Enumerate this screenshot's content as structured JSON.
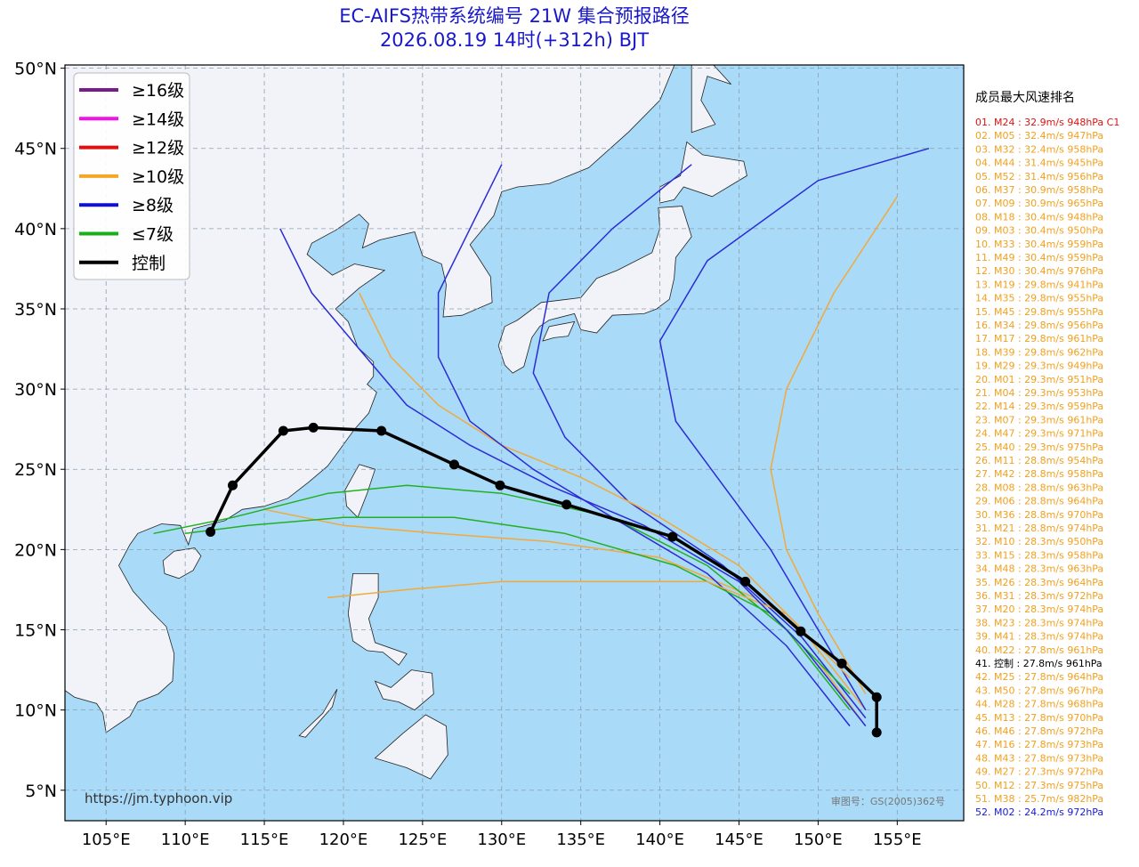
{
  "header": {
    "title": "EC-AIFS热带系统编号 21W 集合预报路径",
    "subtitle": "2026.08.19 14时(+312h) BJT"
  },
  "map": {
    "lonlim": [
      102.4,
      159.2
    ],
    "latlim": [
      3.1,
      50.2
    ],
    "grid": true,
    "lonticks": [
      {
        "value": 105,
        "label": "105°E"
      },
      {
        "value": 110,
        "label": "110°E"
      },
      {
        "value": 115,
        "label": "115°E"
      },
      {
        "value": 120,
        "label": "120°E"
      },
      {
        "value": 125,
        "label": "125°E"
      },
      {
        "value": 130,
        "label": "130°E"
      },
      {
        "value": 135,
        "label": "135°E"
      },
      {
        "value": 140,
        "label": "140°E"
      },
      {
        "value": 145,
        "label": "145°E"
      },
      {
        "value": 150,
        "label": "150°E"
      },
      {
        "value": 155,
        "label": "155°E"
      }
    ],
    "latticks": [
      {
        "value": 5,
        "label": "5°N"
      },
      {
        "value": 10,
        "label": "10°N"
      },
      {
        "value": 15,
        "label": "15°N"
      },
      {
        "value": 20,
        "label": "20°N"
      },
      {
        "value": 25,
        "label": "25°N"
      },
      {
        "value": 30,
        "label": "30°N"
      },
      {
        "value": 35,
        "label": "35°N"
      },
      {
        "value": 40,
        "label": "40°N"
      },
      {
        "value": 45,
        "label": "45°N"
      },
      {
        "value": 50,
        "label": "50°N"
      }
    ]
  },
  "legend": {
    "items": [
      {
        "label": "≥16级",
        "color": "#7a1a8c"
      },
      {
        "label": "≥14级",
        "color": "#f012e8"
      },
      {
        "label": "≥12级",
        "color": "#e01010"
      },
      {
        "label": "≥10级",
        "color": "#f5a623"
      },
      {
        "label": "≥8级",
        "color": "#1010d0"
      },
      {
        "label": "≤7级",
        "color": "#18b018"
      },
      {
        "label": "控制",
        "color": "#000000"
      }
    ]
  },
  "tracks": [
    {
      "color": "#f2a93b",
      "lon": [
        153,
        150,
        146,
        140,
        133,
        126,
        120,
        115
      ],
      "lat": [
        9,
        13,
        17,
        19.5,
        20.5,
        21,
        21.5,
        22.5
      ]
    },
    {
      "color": "#2b2bd6",
      "lon": [
        153,
        149,
        144,
        138,
        134,
        132,
        133,
        137,
        142
      ],
      "lat": [
        9.5,
        14.5,
        19,
        23,
        27,
        31,
        36,
        40,
        44
      ]
    },
    {
      "color": "#22b022",
      "lon": [
        152,
        148,
        143,
        137,
        130,
        124,
        119,
        113,
        108
      ],
      "lat": [
        10,
        15,
        19,
        22,
        23.5,
        24,
        23.5,
        22,
        21
      ]
    },
    {
      "color": "#f2a93b",
      "lon": [
        153,
        149,
        145,
        140,
        135,
        130,
        126,
        123,
        121
      ],
      "lat": [
        10,
        15,
        19,
        22,
        24.5,
        26.5,
        29,
        32,
        36
      ]
    },
    {
      "color": "#2b2bd6",
      "lon": [
        152,
        148,
        143,
        137,
        132,
        128,
        126,
        126,
        128,
        130
      ],
      "lat": [
        9,
        14,
        18.5,
        22,
        25,
        28,
        32,
        36,
        40,
        44
      ]
    },
    {
      "color": "#f2a93b",
      "lon": [
        153,
        150,
        148,
        147,
        148,
        151,
        155
      ],
      "lat": [
        11,
        16,
        20,
        25,
        30,
        36,
        42
      ]
    },
    {
      "color": "#2b2bd6",
      "lon": [
        153,
        150,
        147,
        144,
        141,
        140,
        143,
        150,
        157
      ],
      "lat": [
        10,
        15,
        20,
        24,
        28,
        33,
        38,
        43,
        45
      ]
    },
    {
      "color": "#22b022",
      "lon": [
        152,
        147,
        141,
        134,
        127,
        120,
        114,
        110
      ],
      "lat": [
        11,
        16,
        19,
        21,
        22,
        22,
        21.5,
        21
      ]
    },
    {
      "color": "#f2a93b",
      "lon": [
        152,
        148,
        143,
        137,
        130,
        124,
        119
      ],
      "lat": [
        12,
        16,
        18,
        18,
        18,
        17.5,
        17
      ]
    },
    {
      "color": "#2b2bd6",
      "lon": [
        153,
        149,
        145,
        139,
        133,
        128,
        124,
        121,
        118,
        116
      ],
      "lat": [
        9,
        14,
        18,
        21.5,
        24,
        26.5,
        29,
        32.5,
        36,
        40
      ]
    }
  ],
  "control_track": {
    "color": "#000000",
    "lon": [
      153.7,
      153.7,
      151.5,
      148.9,
      145.4,
      140.8,
      134.1,
      129.9,
      127.0,
      122.4,
      118.1,
      116.2,
      113.0,
      111.6
    ],
    "lat": [
      8.6,
      10.8,
      12.9,
      14.9,
      18.0,
      20.8,
      22.8,
      24.0,
      25.3,
      27.4,
      27.6,
      27.4,
      24.0,
      21.1
    ]
  },
  "ranking": {
    "title": "成员最大风速排名",
    "entries": [
      {
        "text": "01. M24 : 32.9m/s 948hPa C1",
        "color": "#e01010"
      },
      {
        "text": "02. M05 : 32.4m/s 947hPa",
        "color": "#f0a020"
      },
      {
        "text": "03. M32 : 32.4m/s 958hPa",
        "color": "#f0a020"
      },
      {
        "text": "04. M44 : 31.4m/s 945hPa",
        "color": "#f0a020"
      },
      {
        "text": "05. M52 : 31.4m/s 956hPa",
        "color": "#f0a020"
      },
      {
        "text": "06. M37 : 30.9m/s 958hPa",
        "color": "#f0a020"
      },
      {
        "text": "07. M09 : 30.9m/s 965hPa",
        "color": "#f0a020"
      },
      {
        "text": "08. M18 : 30.4m/s 948hPa",
        "color": "#f0a020"
      },
      {
        "text": "09. M03 : 30.4m/s 950hPa",
        "color": "#f0a020"
      },
      {
        "text": "10. M33 : 30.4m/s 959hPa",
        "color": "#f0a020"
      },
      {
        "text": "11. M49 : 30.4m/s 959hPa",
        "color": "#f0a020"
      },
      {
        "text": "12. M30 : 30.4m/s 976hPa",
        "color": "#f0a020"
      },
      {
        "text": "13. M19 : 29.8m/s 941hPa",
        "color": "#f0a020"
      },
      {
        "text": "14. M35 : 29.8m/s 955hPa",
        "color": "#f0a020"
      },
      {
        "text": "15. M45 : 29.8m/s 955hPa",
        "color": "#f0a020"
      },
      {
        "text": "16. M34 : 29.8m/s 956hPa",
        "color": "#f0a020"
      },
      {
        "text": "17. M17 : 29.8m/s 961hPa",
        "color": "#f0a020"
      },
      {
        "text": "18. M39 : 29.8m/s 962hPa",
        "color": "#f0a020"
      },
      {
        "text": "19. M29 : 29.3m/s 949hPa",
        "color": "#f0a020"
      },
      {
        "text": "20. M01 : 29.3m/s 951hPa",
        "color": "#f0a020"
      },
      {
        "text": "21. M04 : 29.3m/s 953hPa",
        "color": "#f0a020"
      },
      {
        "text": "22. M14 : 29.3m/s 959hPa",
        "color": "#f0a020"
      },
      {
        "text": "23. M07 : 29.3m/s 961hPa",
        "color": "#f0a020"
      },
      {
        "text": "24. M47 : 29.3m/s 971hPa",
        "color": "#f0a020"
      },
      {
        "text": "25. M40 : 29.3m/s 975hPa",
        "color": "#f0a020"
      },
      {
        "text": "26. M11 : 28.8m/s 954hPa",
        "color": "#f0a020"
      },
      {
        "text": "27. M42 : 28.8m/s 958hPa",
        "color": "#f0a020"
      },
      {
        "text": "28. M08 : 28.8m/s 963hPa",
        "color": "#f0a020"
      },
      {
        "text": "29. M06 : 28.8m/s 964hPa",
        "color": "#f0a020"
      },
      {
        "text": "30. M36 : 28.8m/s 970hPa",
        "color": "#f0a020"
      },
      {
        "text": "31. M21 : 28.8m/s 974hPa",
        "color": "#f0a020"
      },
      {
        "text": "32. M10 : 28.3m/s 950hPa",
        "color": "#f0a020"
      },
      {
        "text": "33. M15 : 28.3m/s 958hPa",
        "color": "#f0a020"
      },
      {
        "text": "34. M48 : 28.3m/s 963hPa",
        "color": "#f0a020"
      },
      {
        "text": "35. M26 : 28.3m/s 964hPa",
        "color": "#f0a020"
      },
      {
        "text": "36. M31 : 28.3m/s 972hPa",
        "color": "#f0a020"
      },
      {
        "text": "37. M20 : 28.3m/s 974hPa",
        "color": "#f0a020"
      },
      {
        "text": "38. M23 : 28.3m/s 974hPa",
        "color": "#f0a020"
      },
      {
        "text": "39. M41 : 28.3m/s 974hPa",
        "color": "#f0a020"
      },
      {
        "text": "40. M22 : 27.8m/s 961hPa",
        "color": "#f0a020"
      },
      {
        "text": "41. 控制 : 27.8m/s 961hPa",
        "color": "#000000"
      },
      {
        "text": "42. M25 : 27.8m/s 964hPa",
        "color": "#f0a020"
      },
      {
        "text": "43. M50 : 27.8m/s 967hPa",
        "color": "#f0a020"
      },
      {
        "text": "44. M28 : 27.8m/s 968hPa",
        "color": "#f0a020"
      },
      {
        "text": "45. M13 : 27.8m/s 970hPa",
        "color": "#f0a020"
      },
      {
        "text": "46. M46 : 27.8m/s 972hPa",
        "color": "#f0a020"
      },
      {
        "text": "47. M16 : 27.8m/s 973hPa",
        "color": "#f0a020"
      },
      {
        "text": "48. M43 : 27.8m/s 973hPa",
        "color": "#f0a020"
      },
      {
        "text": "49. M27 : 27.3m/s 972hPa",
        "color": "#f0a020"
      },
      {
        "text": "50. M12 : 27.3m/s 975hPa",
        "color": "#f0a020"
      },
      {
        "text": "51. M38 : 25.7m/s 982hPa",
        "color": "#f0a020"
      },
      {
        "text": "52. M02 : 24.2m/s 972hPa",
        "color": "#1a1ad0"
      }
    ]
  },
  "source": "https://jm.typhoon.vip",
  "approval": "审图号：GS(2005)362号"
}
